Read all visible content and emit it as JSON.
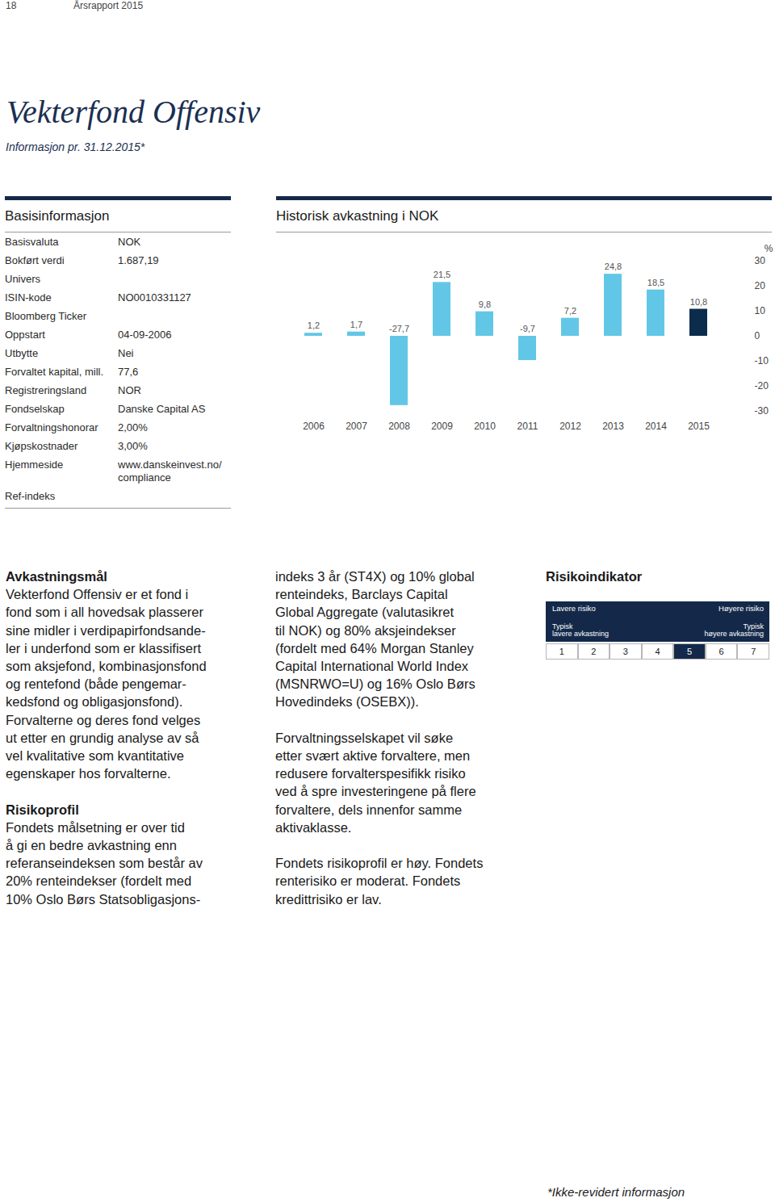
{
  "header": {
    "page_number": "18",
    "running_header": "Årsrapport 2015"
  },
  "title": "Vekterfond Offensiv",
  "subtitle": "Informasjon pr. 31.12.2015*",
  "basic_info": {
    "heading": "Basisinformasjon",
    "rows": [
      {
        "label": "Basisvaluta",
        "value": [
          "NOK"
        ]
      },
      {
        "label": "Bokført verdi",
        "value": [
          "1.687,19"
        ]
      },
      {
        "label": "Univers",
        "value": null
      },
      {
        "label": "ISIN-kode",
        "value": [
          "NO0010331127"
        ]
      },
      {
        "label": "Bloomberg Ticker",
        "value": null
      },
      {
        "label": "Oppstart",
        "value": [
          "04-09-2006"
        ]
      },
      {
        "label": "Utbytte",
        "value": [
          "Nei"
        ]
      },
      {
        "label": "Forvaltet kapital, mill.",
        "value": [
          "77,6"
        ]
      },
      {
        "label": "Registreringsland",
        "value": [
          "NOR"
        ]
      },
      {
        "label": "Fondselskap",
        "value": [
          "Danske Capital AS"
        ]
      },
      {
        "label": "Forvaltningshonorar",
        "value": [
          "2,00%"
        ]
      },
      {
        "label": "Kjøpskostnader",
        "value": [
          "3,00%"
        ]
      },
      {
        "label": "Hjemmeside",
        "value": [
          "www.danskeinvest.no/",
          "compliance"
        ]
      },
      {
        "label": "Ref-indeks",
        "value": null
      }
    ]
  },
  "chart_data": {
    "type": "bar",
    "title": "Historisk avkastning i NOK",
    "categories": [
      "2006",
      "2007",
      "2008",
      "2009",
      "2010",
      "2011",
      "2012",
      "2013",
      "2014",
      "2015"
    ],
    "values": [
      1.2,
      1.7,
      -27.7,
      21.5,
      9.8,
      -9.7,
      7.2,
      24.8,
      18.5,
      10.8
    ],
    "value_labels": [
      "1,2",
      "1,7",
      "-27,7",
      "21,5",
      "9,8",
      "-9,7",
      "7,2",
      "24,8",
      "18,5",
      "10,8"
    ],
    "colors": [
      "#62c7e6",
      "#62c7e6",
      "#62c7e6",
      "#62c7e6",
      "#62c7e6",
      "#62c7e6",
      "#62c7e6",
      "#62c7e6",
      "#62c7e6",
      "#0c2c4c"
    ],
    "y_label": "%",
    "ylim": [
      -30,
      30
    ],
    "yticks": [
      30,
      20,
      10,
      0,
      -10,
      -20,
      -30
    ],
    "data_labels": true,
    "grid": false
  },
  "text_columns": [
    [
      {
        "heading": "Avkastningsmål",
        "lines": [
          "Vekterfond Offensiv er et fond i",
          "fond som i all hovedsak plasserer",
          "sine midler i verdipapirfondsande-",
          "ler i underfond som er klassifisert",
          "som aksjefond, kombinasjonsfond",
          "og rentefond (både pengemar-",
          "kedsfond og obligasjonsfond).",
          "Forvalterne og deres fond velges",
          "ut etter en grundig analyse av så",
          "vel kvalitative som kvantitative",
          "egenskaper hos forvalterne."
        ]
      },
      {
        "heading": "Risikoprofil",
        "lines": [
          "Fondets målsetning er over tid",
          "å gi en bedre avkastning enn",
          "referanseindeksen som består av",
          "20% renteindekser (fordelt med",
          "10% Oslo Børs Statsobligasjons-"
        ]
      }
    ],
    [
      {
        "heading": null,
        "lines": [
          "indeks 3 år (ST4X) og 10% global",
          "renteindeks, Barclays Capital",
          "Global Aggregate (valutasikret",
          "til NOK) og 80% aksjeindekser",
          "(fordelt med 64% Morgan Stanley",
          "Capital International World Index",
          "(MSNRWO=U) og 16% Oslo Børs",
          "Hovedindeks (OSEBX))."
        ]
      },
      {
        "heading": null,
        "lines": [
          "Forvaltningsselskapet vil søke",
          "etter svært aktive forvaltere, men",
          "redusere forvalterspesifikk risiko",
          "ved å spre investeringene på flere",
          "forvaltere, dels innenfor samme",
          "aktivaklasse."
        ]
      },
      {
        "heading": null,
        "lines": [
          "Fondets risikoprofil er høy. Fondets",
          "renterisiko er moderat. Fondets",
          "kredittrisiko er lav."
        ]
      }
    ]
  ],
  "risk_indicator": {
    "title": "Risikoindikator",
    "left_top": "Lavere risiko",
    "right_top": "Høyere risiko",
    "left_bottom": [
      "Typisk",
      "lavere avkastning"
    ],
    "right_bottom": [
      "Typisk",
      "høyere avkastning"
    ],
    "scale": [
      1,
      2,
      3,
      4,
      5,
      6,
      7
    ],
    "selected": 5
  },
  "footnote": "*Ikke-revidert informasjon"
}
